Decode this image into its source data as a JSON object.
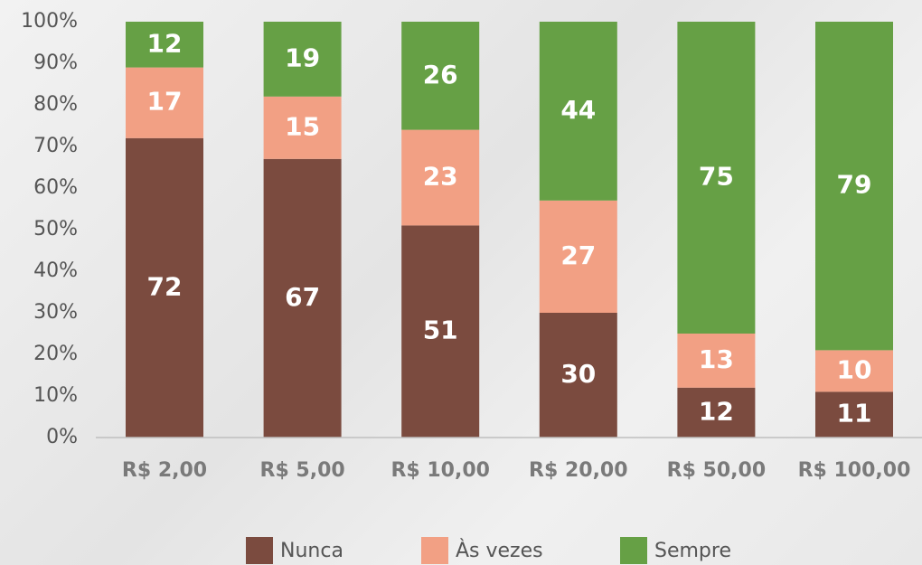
{
  "chart_data": {
    "type": "stacked_bar",
    "categories": [
      "R$ 2,00",
      "R$ 5,00",
      "R$ 10,00",
      "R$ 20,00",
      "R$ 50,00",
      "R$ 100,00"
    ],
    "series": [
      {
        "name": "Nunca",
        "color": "#7b4b3f",
        "values": [
          72,
          67,
          51,
          30,
          12,
          11
        ]
      },
      {
        "name": "Às vezes",
        "color": "#f2a084",
        "values": [
          17,
          15,
          23,
          27,
          13,
          10
        ]
      },
      {
        "name": "Sempre",
        "color": "#66a045",
        "values": [
          12,
          19,
          26,
          44,
          75,
          79
        ]
      }
    ],
    "ylim": [
      0,
      100
    ],
    "yticks": [
      {
        "value": 0,
        "label": "0%"
      },
      {
        "value": 10,
        "label": "10%"
      },
      {
        "value": 20,
        "label": "20%"
      },
      {
        "value": 30,
        "label": "30%"
      },
      {
        "value": 40,
        "label": "40%"
      },
      {
        "value": 50,
        "label": "50%"
      },
      {
        "value": 60,
        "label": "60%"
      },
      {
        "value": 70,
        "label": "70%"
      },
      {
        "value": 80,
        "label": "80%"
      },
      {
        "value": 90,
        "label": "90%"
      },
      {
        "value": 100,
        "label": "100%"
      }
    ],
    "legend": "bottom"
  }
}
